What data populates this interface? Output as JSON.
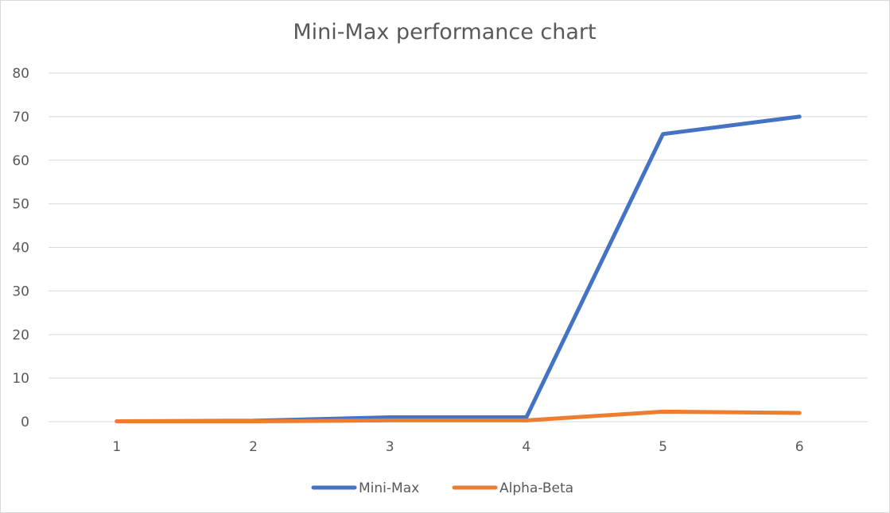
{
  "chart_data": {
    "type": "line",
    "title": "Mini-Max performance chart",
    "xlabel": "",
    "ylabel": "",
    "categories": [
      "1",
      "2",
      "3",
      "4",
      "5",
      "6"
    ],
    "ylim": [
      0,
      80
    ],
    "yticks": [
      0,
      10,
      20,
      30,
      40,
      50,
      60,
      70,
      80
    ],
    "grid": "horizontal",
    "legend": "bottom",
    "series": [
      {
        "name": "Mini-Max",
        "color": "#4472c4",
        "values": [
          0.1,
          0.2,
          1.0,
          1.0,
          66,
          70
        ]
      },
      {
        "name": "Alpha-Beta",
        "color": "#ed7d31",
        "values": [
          0.1,
          0.1,
          0.3,
          0.3,
          2.3,
          2.0
        ]
      }
    ]
  }
}
